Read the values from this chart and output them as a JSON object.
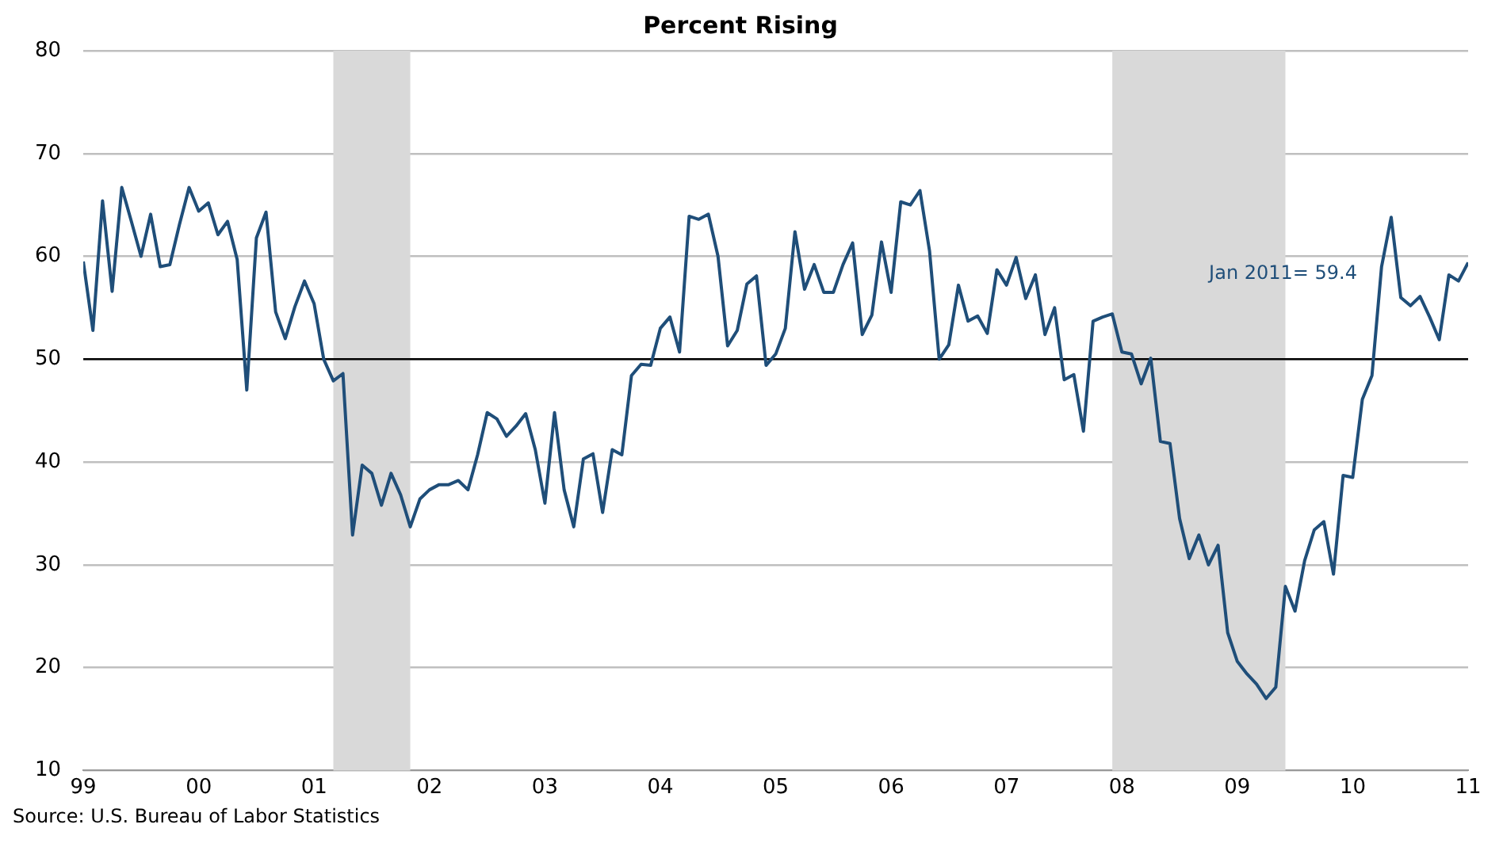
{
  "chart_data": {
    "type": "line",
    "title": "Percent Rising",
    "x": [
      "1999-01",
      "1999-02",
      "1999-03",
      "1999-04",
      "1999-05",
      "1999-06",
      "1999-07",
      "1999-08",
      "1999-09",
      "1999-10",
      "1999-11",
      "1999-12",
      "2000-01",
      "2000-02",
      "2000-03",
      "2000-04",
      "2000-05",
      "2000-06",
      "2000-07",
      "2000-08",
      "2000-09",
      "2000-10",
      "2000-11",
      "2000-12",
      "2001-01",
      "2001-02",
      "2001-03",
      "2001-04",
      "2001-05",
      "2001-06",
      "2001-07",
      "2001-08",
      "2001-09",
      "2001-10",
      "2001-11",
      "2001-12",
      "2002-01",
      "2002-02",
      "2002-03",
      "2002-04",
      "2002-05",
      "2002-06",
      "2002-07",
      "2002-08",
      "2002-09",
      "2002-10",
      "2002-11",
      "2002-12",
      "2003-01",
      "2003-02",
      "2003-03",
      "2003-04",
      "2003-05",
      "2003-06",
      "2003-07",
      "2003-08",
      "2003-09",
      "2003-10",
      "2003-11",
      "2003-12",
      "2004-01",
      "2004-02",
      "2004-03",
      "2004-04",
      "2004-05",
      "2004-06",
      "2004-07",
      "2004-08",
      "2004-09",
      "2004-10",
      "2004-11",
      "2004-12",
      "2005-01",
      "2005-02",
      "2005-03",
      "2005-04",
      "2005-05",
      "2005-06",
      "2005-07",
      "2005-08",
      "2005-09",
      "2005-10",
      "2005-11",
      "2005-12",
      "2006-01",
      "2006-02",
      "2006-03",
      "2006-04",
      "2006-05",
      "2006-06",
      "2006-07",
      "2006-08",
      "2006-09",
      "2006-10",
      "2006-11",
      "2006-12",
      "2007-01",
      "2007-02",
      "2007-03",
      "2007-04",
      "2007-05",
      "2007-06",
      "2007-07",
      "2007-08",
      "2007-09",
      "2007-10",
      "2007-11",
      "2007-12",
      "2008-01",
      "2008-02",
      "2008-03",
      "2008-04",
      "2008-05",
      "2008-06",
      "2008-07",
      "2008-08",
      "2008-09",
      "2008-10",
      "2008-11",
      "2008-12",
      "2009-01",
      "2009-02",
      "2009-03",
      "2009-04",
      "2009-05",
      "2009-06",
      "2009-07",
      "2009-08",
      "2009-09",
      "2009-10",
      "2009-11",
      "2009-12",
      "2010-01",
      "2010-02",
      "2010-03",
      "2010-04",
      "2010-05",
      "2010-06",
      "2010-07",
      "2010-08",
      "2010-09",
      "2010-10",
      "2010-11",
      "2010-12",
      "2011-01"
    ],
    "series": [
      {
        "color": "#1f4e79",
        "values": [
          59.5,
          52.8,
          65.4,
          56.6,
          66.7,
          63.4,
          60,
          64.1,
          59,
          59.2,
          63.1,
          66.7,
          64.4,
          65.2,
          62.1,
          63.4,
          59.7,
          47,
          61.8,
          64.3,
          54.6,
          52,
          55.1,
          57.6,
          55.4,
          50,
          47.9,
          48.6,
          32.9,
          39.7,
          38.9,
          35.8,
          38.9,
          36.8,
          33.7,
          36.4,
          37.3,
          37.8,
          37.8,
          38.2,
          37.3,
          40.7,
          44.8,
          44.2,
          42.5,
          43.5,
          44.7,
          41.2,
          36,
          44.8,
          37.3,
          33.7,
          40.3,
          40.8,
          35.1,
          41.2,
          40.7,
          48.4,
          49.5,
          49.4,
          53,
          54.1,
          50.7,
          63.9,
          63.6,
          64.1,
          60,
          51.3,
          52.8,
          57.3,
          58.1,
          49.4,
          50.5,
          53,
          62.4,
          56.8,
          59.2,
          56.5,
          56.5,
          59.2,
          61.3,
          52.4,
          54.3,
          61.4,
          56.5,
          65.3,
          65,
          66.4,
          60.5,
          50,
          51.4,
          57.2,
          53.7,
          54.2,
          52.5,
          58.7,
          57.2,
          59.9,
          55.9,
          58.2,
          52.4,
          55,
          48,
          48.5,
          43,
          53.7,
          54.1,
          54.4,
          50.7,
          50.5,
          47.6,
          50.1,
          42,
          41.8,
          34.5,
          30.6,
          32.9,
          30,
          31.9,
          23.4,
          20.6,
          19.4,
          18.4,
          17,
          18.1,
          27.9,
          25.5,
          30.4,
          33.4,
          34.2,
          29.1,
          38.7,
          38.5,
          46.1,
          48.4,
          59,
          63.8,
          56,
          55.2,
          56.1,
          54.1,
          51.9,
          58.2,
          57.6,
          59.4
        ]
      }
    ],
    "xlim": [
      "1999-01",
      "2011-01"
    ],
    "xticks": [
      {
        "value": "1999-01",
        "label": "99"
      },
      {
        "value": "2000-01",
        "label": "00"
      },
      {
        "value": "2001-01",
        "label": "01"
      },
      {
        "value": "2002-01",
        "label": "02"
      },
      {
        "value": "2003-01",
        "label": "03"
      },
      {
        "value": "2004-01",
        "label": "04"
      },
      {
        "value": "2005-01",
        "label": "05"
      },
      {
        "value": "2006-01",
        "label": "06"
      },
      {
        "value": "2007-01",
        "label": "07"
      },
      {
        "value": "2008-01",
        "label": "08"
      },
      {
        "value": "2009-01",
        "label": "09"
      },
      {
        "value": "2010-01",
        "label": "10"
      },
      {
        "value": "2011-01",
        "label": "11"
      }
    ],
    "ylim": [
      10,
      80
    ],
    "yticks": [
      10,
      20,
      30,
      40,
      50,
      60,
      70,
      80
    ],
    "grid": "y",
    "legend": false,
    "marker": "none",
    "line_style": "solid",
    "ref_lines": [
      {
        "axis": "y",
        "value": 50,
        "color": "#000000"
      }
    ],
    "bands": [
      {
        "axis": "x",
        "from": "2001-03",
        "to": "2001-11",
        "color": "#d9d9d9"
      },
      {
        "axis": "x",
        "from": "2007-12",
        "to": "2009-06",
        "color": "#d9d9d9"
      }
    ],
    "annotations": [
      "Jan 2011= 59.4",
      "Source: U.S. Bureau of Labor Statistics"
    ]
  }
}
